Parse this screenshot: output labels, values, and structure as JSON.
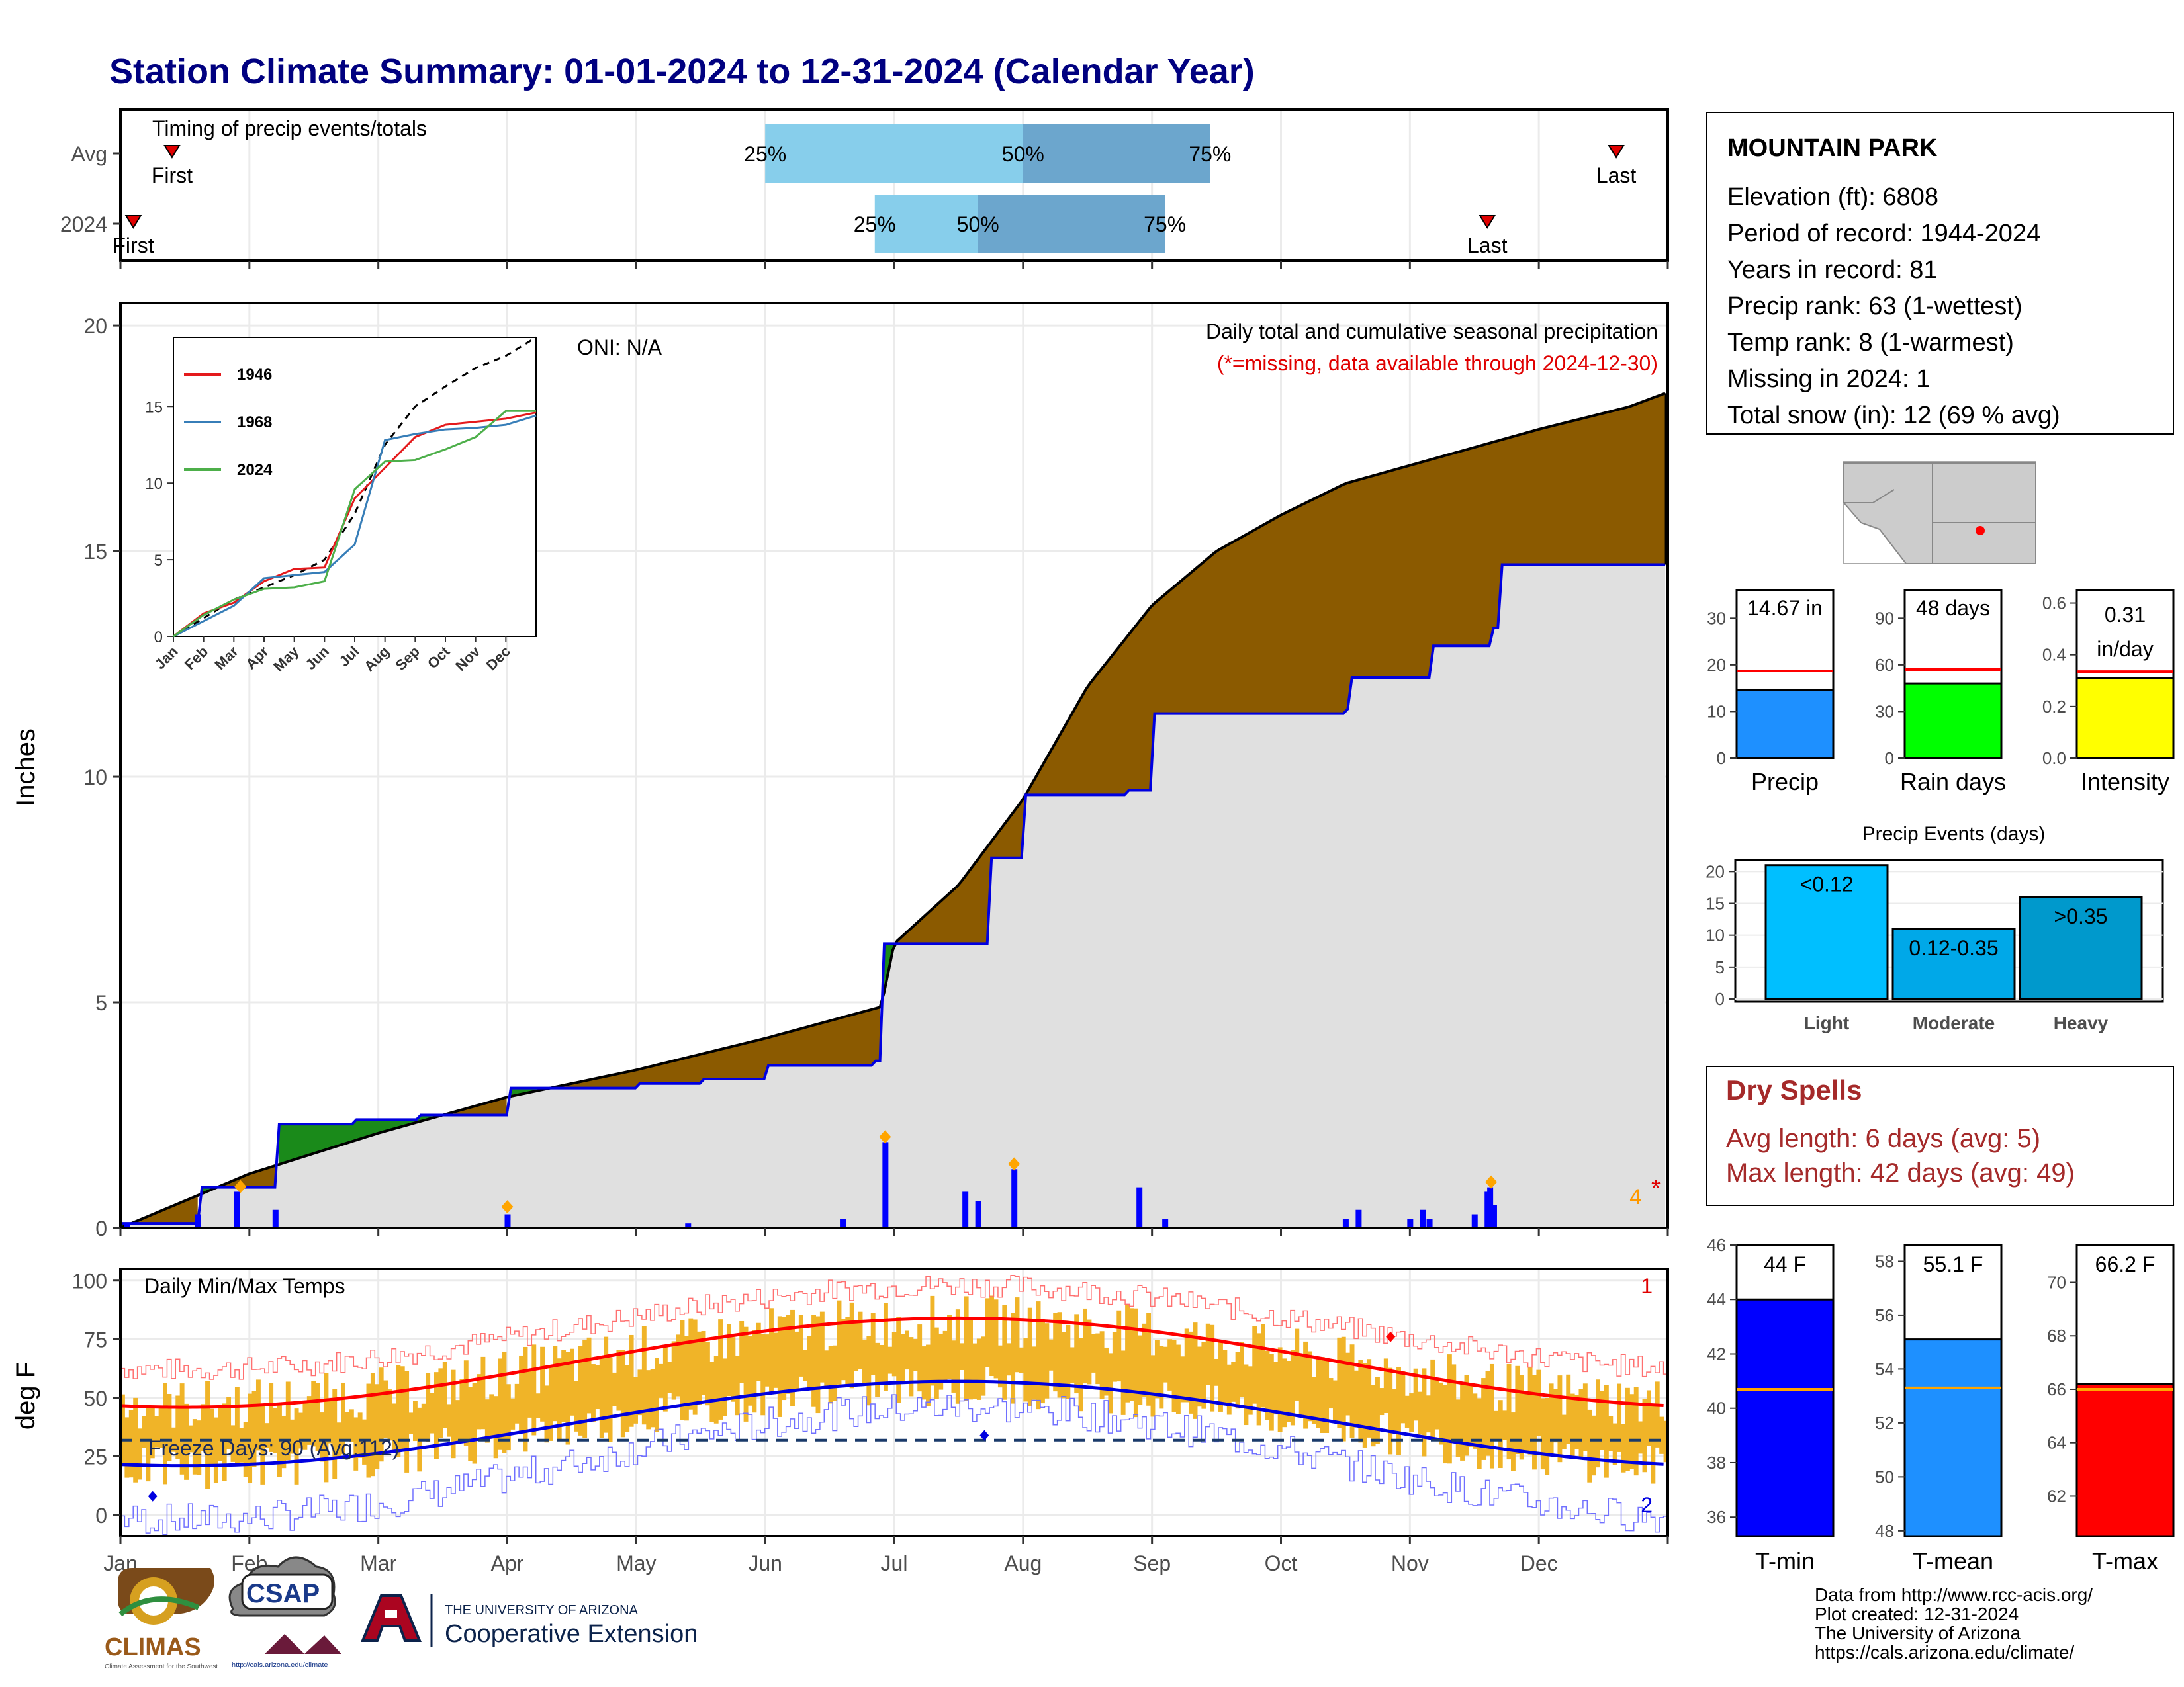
{
  "title": "Station Climate Summary: 01-01-2024 to 12-31-2024 (Calendar Year)",
  "timing": {
    "label": "Timing of precip events/totals",
    "rows": [
      {
        "name": "Avg",
        "first_month": 1.4,
        "p25": 6.0,
        "p50": 8.0,
        "p75": 9.45,
        "last_month": 12.6,
        "first_label": "First",
        "last_label": "Last"
      },
      {
        "name": "2024",
        "first_month": 1.1,
        "p25": 6.85,
        "p50": 7.65,
        "p75": 9.1,
        "last_month": 11.6,
        "first_label": "First",
        "last_label": "Last"
      }
    ],
    "pct_labels": [
      "25%",
      "50%",
      "75%"
    ]
  },
  "main": {
    "ylabel": "Inches",
    "header": "Daily total and cumulative seasonal precipitation",
    "missing_note": "(*=missing, data available through 2024-12-30)",
    "oni": "ONI: N/A",
    "yticks": [
      0,
      5,
      10,
      15,
      20
    ],
    "right_count": "4",
    "right_star": "*"
  },
  "inset": {
    "yticks": [
      0,
      5,
      10,
      15
    ],
    "months": [
      "Jan",
      "Feb",
      "Mar",
      "Apr",
      "May",
      "Jun",
      "Jul",
      "Aug",
      "Sep",
      "Oct",
      "Nov",
      "Dec"
    ],
    "legend": [
      {
        "name": "1946",
        "color": "#e41a1c"
      },
      {
        "name": "1968",
        "color": "#377eb8"
      },
      {
        "name": "2024",
        "color": "#4daf4a"
      }
    ]
  },
  "temps": {
    "title": "Daily Min/Max Temps",
    "ylabel": "deg F",
    "yticks": [
      0,
      25,
      50,
      75,
      100
    ],
    "freeze_label": "Freeze Days: 90 (Avg:112)",
    "count_top": "1",
    "count_bottom": "2",
    "months": [
      "Jan",
      "Feb",
      "Mar",
      "Apr",
      "May",
      "Jun",
      "Jul",
      "Aug",
      "Sep",
      "Oct",
      "Nov",
      "Dec"
    ]
  },
  "station": {
    "name": "MOUNTAIN PARK",
    "lines": [
      "Elevation (ft): 6808",
      "Period of record: 1944-2024",
      "Years in record: 81",
      "Precip rank: 63 (1-wettest)",
      "Temp rank: 8 (1-warmest)",
      "Missing in 2024: 1",
      "Total snow (in): 12 (69 % avg)"
    ]
  },
  "mini_bars": [
    {
      "name": "Precip",
      "value_label": "14.67 in",
      "value": 14.67,
      "avg": 18.7,
      "ymax": 36,
      "yticks": [
        0,
        10,
        20,
        30
      ],
      "color": "#1e90ff"
    },
    {
      "name": "Rain days",
      "value_label": "48 days",
      "value": 48,
      "avg": 57,
      "ymax": 108,
      "yticks": [
        0,
        30,
        60,
        90
      ],
      "color": "#00ff00"
    },
    {
      "name": "Intensity",
      "value_label": "0.31",
      "value_label2": "in/day",
      "value": 0.31,
      "avg": 0.335,
      "ymax": 0.65,
      "yticks": [
        "0.0",
        "0.2",
        "0.4",
        "0.6"
      ],
      "color": "#ffff00"
    }
  ],
  "precip_events": {
    "title": "Precip Events (days)",
    "yticks": [
      0,
      5,
      10,
      15,
      20
    ],
    "categories": [
      "Light",
      "Moderate",
      "Heavy"
    ],
    "labels": [
      "<0.12",
      "0.12-0.35",
      ">0.35"
    ],
    "values": [
      21,
      11,
      16
    ],
    "colors": [
      "#00bfff",
      "#00a8e8",
      "#0099cc"
    ]
  },
  "dry_spells": {
    "title": "Dry Spells",
    "avg_line": "Avg length: 6 days (avg: 5)",
    "max_line": "Max length: 42 days (avg: 49)"
  },
  "temp_bars": [
    {
      "name": "T-min",
      "value_label": "44 F",
      "value": 44,
      "avg": 40.7,
      "ymin": 35.3,
      "ymax": 46,
      "yticks": [
        36,
        38,
        40,
        42,
        44,
        46
      ],
      "color": "#0000ff"
    },
    {
      "name": "T-mean",
      "value_label": "55.1 F",
      "value": 55.1,
      "avg": 53.3,
      "ymin": 47.8,
      "ymax": 58.6,
      "yticks": [
        48,
        50,
        52,
        54,
        56,
        58
      ],
      "color": "#1e90ff"
    },
    {
      "name": "T-max",
      "value_label": "66.2 F",
      "value": 66.2,
      "avg": 66.0,
      "ymin": 60.5,
      "ymax": 71.4,
      "yticks": [
        62,
        64,
        66,
        68,
        70
      ],
      "color": "#ff0000"
    }
  ],
  "footer": [
    "Data from http://www.rcc-acis.org/",
    "Plot created: 12-31-2024",
    "The University of Arizona",
    "https://cals.arizona.edu/climate/"
  ],
  "logos": {
    "climas": "CLIMAS",
    "climas_sub": "Climate Assessment for the Southwest",
    "csap": "CSAP",
    "csap_url": "http://cals.arizona.edu/climate",
    "ua_top": "THE UNIVERSITY OF ARIZONA",
    "ua_bottom": "Cooperative Extension"
  },
  "chart_data": {
    "type": "area",
    "title": "Daily total and cumulative seasonal precipitation",
    "ylabel": "Inches",
    "ylim": [
      0,
      20
    ],
    "x_unit": "month",
    "series": [
      {
        "name": "cum_avg",
        "x": [
          1,
          1.5,
          2,
          3,
          4,
          5,
          6,
          6.9,
          7,
          7.5,
          8,
          8.5,
          9,
          9.5,
          10,
          10.5,
          11,
          11.5,
          12,
          12.7,
          12.98
        ],
        "y": [
          0,
          0.6,
          1.2,
          2.1,
          2.9,
          3.5,
          4.2,
          4.9,
          6.3,
          7.6,
          9.5,
          12.0,
          13.8,
          15.0,
          15.8,
          16.5,
          16.9,
          17.3,
          17.7,
          18.2,
          18.5
        ]
      },
      {
        "name": "cum_2024",
        "x": [
          1,
          1.6,
          2.2,
          2.8,
          3.3,
          4,
          4.5,
          5,
          5.5,
          6,
          6.85,
          6.92,
          7.55,
          7.75,
          8,
          8.8,
          9,
          9.8,
          10.5,
          10.55,
          11,
          11.15,
          11.55,
          11.63,
          11.7,
          12.97
        ],
        "y": [
          0.1,
          0.9,
          2.3,
          2.4,
          2.5,
          3.1,
          3.1,
          3.2,
          3.3,
          3.6,
          3.7,
          6.3,
          6.3,
          8.2,
          9.6,
          9.7,
          11.4,
          11.4,
          11.5,
          12.2,
          12.2,
          12.9,
          12.9,
          13.3,
          14.7,
          14.7
        ]
      },
      {
        "name": "daily_2024",
        "x": [
          1.05,
          1.6,
          1.9,
          2.2,
          4.0,
          5.4,
          6.6,
          6.93,
          7.55,
          7.65,
          7.93,
          8.9,
          9.1,
          10.5,
          10.6,
          11.0,
          11.1,
          11.15,
          11.5,
          11.6,
          11.62,
          11.65
        ],
        "y": [
          0.1,
          0.3,
          0.8,
          0.4,
          0.3,
          0.1,
          0.2,
          1.9,
          0.8,
          0.6,
          1.3,
          0.9,
          0.2,
          0.2,
          0.4,
          0.2,
          0.4,
          0.2,
          0.3,
          0.8,
          0.9,
          0.5
        ]
      }
    ]
  }
}
